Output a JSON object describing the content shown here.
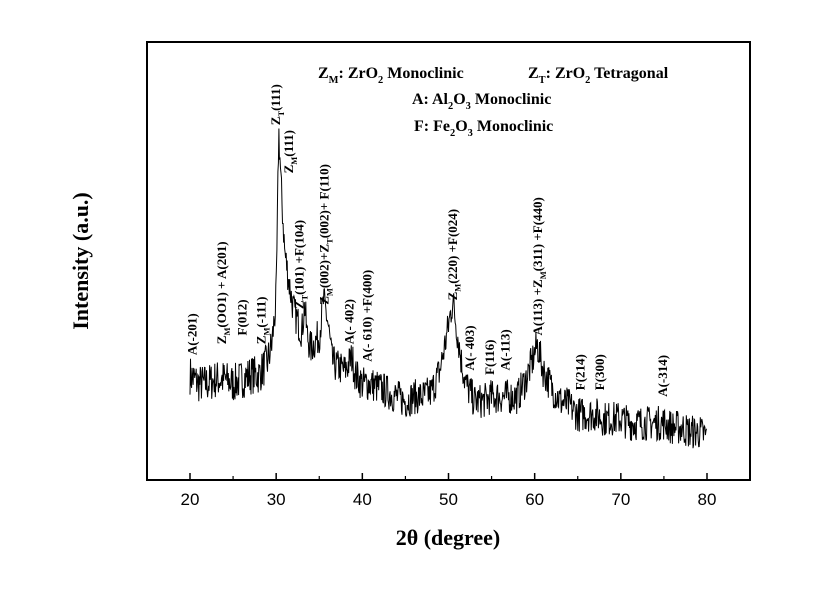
{
  "chart_data": {
    "type": "line",
    "xlabel": "2θ (degree)",
    "ylabel": "Intensity (a.u.)",
    "xlim": [
      15,
      85
    ],
    "ylim": [
      0,
      100
    ],
    "xticks": [
      "20",
      "30",
      "40",
      "50",
      "60",
      "70",
      "80"
    ],
    "yticks_shown": false,
    "grid": false,
    "series": [
      {
        "x": [
          20,
          21,
          22,
          23,
          24,
          25,
          26,
          27,
          28,
          29,
          29.5,
          30,
          30.3,
          30.6,
          31,
          31.5,
          32,
          32.5,
          33,
          33.3,
          33.6,
          34,
          35,
          35.5,
          36,
          36.5,
          37,
          38,
          38.8,
          39.2,
          40,
          41,
          42,
          43,
          44,
          45,
          46,
          47,
          48,
          49,
          49.8,
          50.5,
          51,
          51.5,
          52,
          53,
          54,
          55,
          56,
          57,
          58,
          59,
          59.7,
          60.3,
          61,
          62,
          63,
          64,
          65,
          66,
          67,
          68,
          69,
          70,
          71,
          72,
          73,
          74,
          75,
          76,
          77,
          78,
          79,
          80
        ],
        "y": [
          24,
          22,
          22,
          23,
          23,
          22,
          23,
          24,
          24,
          27,
          31,
          41,
          80,
          66,
          52,
          45,
          39,
          36,
          34,
          40,
          33,
          30,
          33,
          41,
          36,
          27,
          26,
          25,
          28,
          24,
          22,
          22,
          21,
          20,
          19,
          18,
          19,
          19,
          20,
          25,
          33,
          41,
          34,
          27,
          22,
          18,
          18,
          19,
          19,
          19,
          19,
          23,
          27,
          31,
          25,
          21,
          18,
          17,
          15,
          15,
          15,
          14,
          14,
          14,
          13,
          13,
          13,
          13,
          13,
          12,
          12,
          11,
          11,
          10
        ]
      }
    ],
    "legend": [
      "Z_M: ZrO_2 Monoclinic",
      "Z_T: ZrO_2 Tetragonal",
      "A: Al_2O_3 Monoclinic",
      "F: Fe_2O_3  Monoclinic"
    ],
    "legend_placement": "top-right",
    "annotations": [
      {
        "text": "A(-201)",
        "x": 20.3,
        "y": 28.5
      },
      {
        "text": "Z_M(OO1) + A(201)",
        "x": 23.7,
        "y": 31
      },
      {
        "text": "F(012)",
        "x": 26.1,
        "y": 33
      },
      {
        "text": "Z_M(-111)",
        "x": 28.3,
        "y": 31
      },
      {
        "text": "Z_T(111)",
        "x": 30.0,
        "y": 81
      },
      {
        "text": "Z_M(111)",
        "x": 31.5,
        "y": 70
      },
      {
        "text": "Z_T(101) +F(104)",
        "x": 32.7,
        "y": 39
      },
      {
        "text": "Z_M(002)+Z_T(002)+ F(110)",
        "x": 35.6,
        "y": 40
      },
      {
        "text": "A(- 402)",
        "x": 38.5,
        "y": 31
      },
      {
        "text": "A(- 610) +F(400)",
        "x": 40.6,
        "y": 27
      },
      {
        "text": "Z_M(220) +F(024)",
        "x": 50.5,
        "y": 41
      },
      {
        "text": "A(- 403)",
        "x": 52.5,
        "y": 25
      },
      {
        "text": "F(116)",
        "x": 54.8,
        "y": 24
      },
      {
        "text": "A(-113)",
        "x": 56.6,
        "y": 25
      },
      {
        "text": "A(113) +Z_M(311) +F(440)",
        "x": 60.4,
        "y": 33
      },
      {
        "text": "F(214)",
        "x": 65.3,
        "y": 20.5
      },
      {
        "text": "F(300)",
        "x": 67.6,
        "y": 20.5
      },
      {
        "text": "A(-314)",
        "x": 74.9,
        "y": 19
      }
    ]
  }
}
